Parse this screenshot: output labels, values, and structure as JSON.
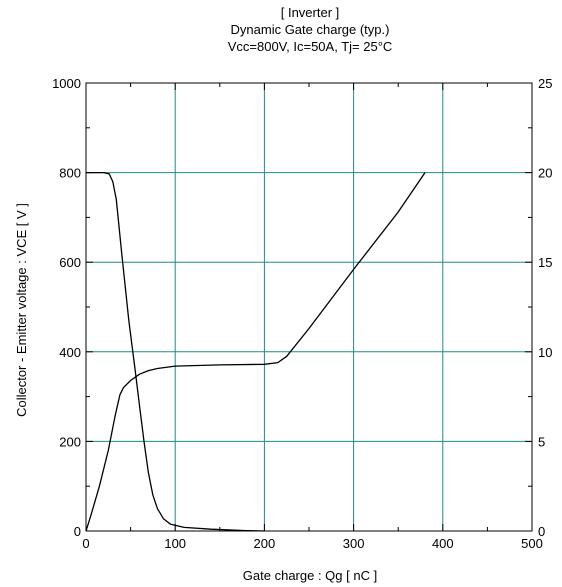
{
  "chart_data": {
    "type": "line",
    "title_lines": [
      "[ Inverter ]",
      "Dynamic Gate charge  (typ.)",
      "Vcc=800V, Ic=50A, Tj= 25°C"
    ],
    "xlabel": "Gate charge  :  Qg  [ nC ]",
    "ylabel": "Collector - Emitter voltage  :  VCE  [ V ]",
    "xlim": [
      0,
      500
    ],
    "ylim": [
      0,
      1000
    ],
    "y2lim": [
      0,
      25
    ],
    "x_ticks": [
      "0",
      "100",
      "200",
      "300",
      "400",
      "500"
    ],
    "y_ticks": [
      "0",
      "200",
      "400",
      "600",
      "800",
      "1000"
    ],
    "y2_ticks": [
      "0",
      "5",
      "10",
      "15",
      "20",
      "25"
    ],
    "grid": true,
    "series": [
      {
        "axis": "left",
        "points": [
          [
            0,
            800
          ],
          [
            20,
            800
          ],
          [
            26,
            797
          ],
          [
            30,
            780
          ],
          [
            34,
            740
          ],
          [
            40,
            620
          ],
          [
            48,
            470
          ],
          [
            55,
            360
          ],
          [
            60,
            280
          ],
          [
            65,
            200
          ],
          [
            70,
            130
          ],
          [
            75,
            80
          ],
          [
            80,
            50
          ],
          [
            87,
            27
          ],
          [
            95,
            15
          ],
          [
            110,
            8
          ],
          [
            140,
            4
          ],
          [
            180,
            1
          ],
          [
            200,
            0
          ]
        ]
      },
      {
        "axis": "right",
        "points": [
          [
            0,
            0
          ],
          [
            5,
            0.8
          ],
          [
            15,
            2.5
          ],
          [
            25,
            4.5
          ],
          [
            33,
            6.5
          ],
          [
            38,
            7.6
          ],
          [
            42,
            8.0
          ],
          [
            50,
            8.4
          ],
          [
            60,
            8.75
          ],
          [
            70,
            8.95
          ],
          [
            80,
            9.07
          ],
          [
            100,
            9.2
          ],
          [
            150,
            9.27
          ],
          [
            200,
            9.3
          ],
          [
            215,
            9.4
          ],
          [
            225,
            9.75
          ],
          [
            250,
            11.3
          ],
          [
            300,
            14.6
          ],
          [
            350,
            17.8
          ],
          [
            380,
            20.0
          ]
        ]
      }
    ]
  }
}
